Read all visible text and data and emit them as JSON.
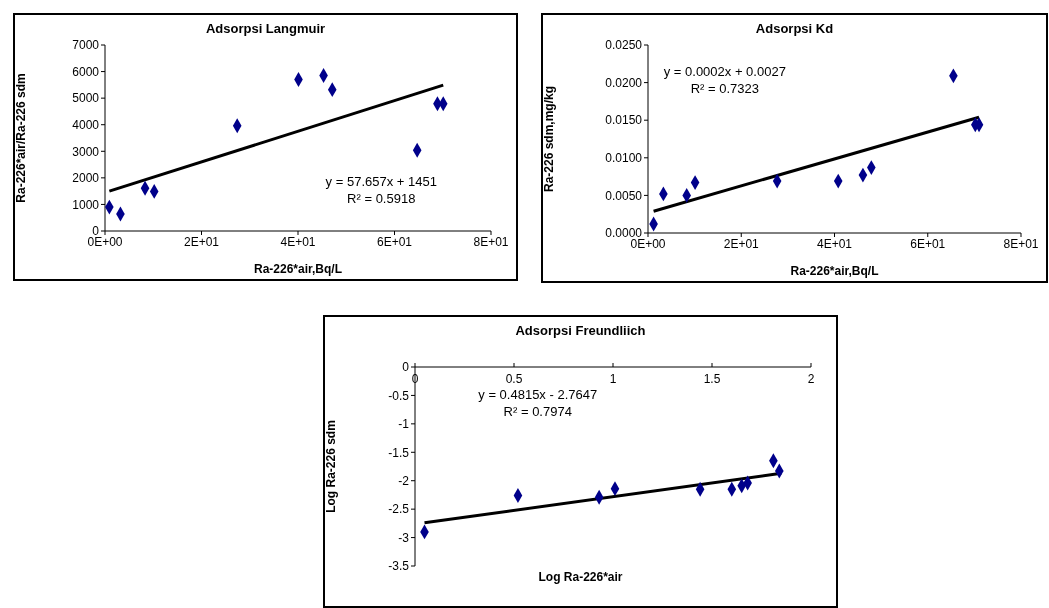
{
  "chart_data": [
    {
      "type": "scatter",
      "title": "Adsorpsi Langmuir",
      "xlabel": "Ra-226*air,Bq/L",
      "ylabel": "Ra-226*air/Ra-226 sdm",
      "marker": "diamond",
      "grid": false,
      "xlim": [
        0,
        80
      ],
      "xticks": [
        {
          "value": 0,
          "label": "0E+00"
        },
        {
          "value": 20,
          "label": "2E+01"
        },
        {
          "value": 40,
          "label": "4E+01"
        },
        {
          "value": 60,
          "label": "6E+01"
        },
        {
          "value": 80,
          "label": "8E+01"
        }
      ],
      "ylim": [
        0,
        7000
      ],
      "yticks": [
        0,
        1000,
        2000,
        3000,
        4000,
        5000,
        6000,
        7000
      ],
      "annotations": [
        "y = 57.657x + 1451",
        "R² = 0.5918"
      ],
      "series": [
        {
          "color": "#00008b",
          "x": [
            0.9,
            3.2,
            8.3,
            10.2,
            27.4,
            40.1,
            45.3,
            47.1,
            64.7,
            68.9,
            70.1
          ],
          "values": [
            900,
            640,
            1610,
            1490,
            3960,
            5700,
            5850,
            5320,
            3040,
            4790,
            4790
          ]
        },
        {
          "type": "line",
          "marker": "none",
          "color": "#000000",
          "x": [
            0.9,
            70.1
          ],
          "values": [
            1500,
            5490
          ]
        }
      ]
    },
    {
      "type": "scatter",
      "title": "Adsorpsi Kd",
      "xlabel": "Ra-226*air,Bq/L",
      "ylabel": "Ra-226 sdm,mg/kg",
      "marker": "diamond",
      "grid": false,
      "xlim": [
        0,
        80
      ],
      "xticks": [
        {
          "value": 0,
          "label": "0E+00"
        },
        {
          "value": 20,
          "label": "2E+01"
        },
        {
          "value": 40,
          "label": "4E+01"
        },
        {
          "value": 60,
          "label": "6E+01"
        },
        {
          "value": 80,
          "label": "8E+01"
        }
      ],
      "ylim": [
        0,
        0.025
      ],
      "yticks": [
        {
          "value": 0,
          "label": "0.0000"
        },
        {
          "value": 0.005,
          "label": "0.0050"
        },
        {
          "value": 0.01,
          "label": "0.0100"
        },
        {
          "value": 0.015,
          "label": "0.0150"
        },
        {
          "value": 0.02,
          "label": "0.0200"
        },
        {
          "value": 0.025,
          "label": "0.0250"
        }
      ],
      "annotations": [
        "y = 0.0002x + 0.0027",
        "R² = 0.7323"
      ],
      "series": [
        {
          "color": "#00008b",
          "x": [
            1.2,
            3.3,
            8.3,
            10.1,
            27.7,
            40.8,
            46.1,
            47.9,
            65.5,
            70.2,
            71.0
          ],
          "values": [
            0.0012,
            0.0052,
            0.005,
            0.0067,
            0.0069,
            0.0069,
            0.0077,
            0.0087,
            0.0209,
            0.0144,
            0.0144
          ]
        },
        {
          "type": "line",
          "marker": "none",
          "color": "#000000",
          "x": [
            1.2,
            71.0
          ],
          "values": [
            0.0029,
            0.0154
          ]
        }
      ]
    },
    {
      "type": "scatter",
      "title": "Adsorpsi Freundliich",
      "xlabel": "Log Ra-226*air",
      "ylabel": "Log Ra-226 sdm",
      "marker": "diamond",
      "grid": false,
      "xlim": [
        0,
        2
      ],
      "xticks": [
        0,
        0.5,
        1,
        1.5,
        2
      ],
      "ylim": [
        -3.5,
        0
      ],
      "yticks": [
        -3.5,
        -3,
        -2.5,
        -2,
        -1.5,
        -1,
        -0.5,
        0
      ],
      "annotations": [
        "y = 0.4815x - 2.7647",
        "R² = 0.7974"
      ],
      "series": [
        {
          "color": "#00008b",
          "x": [
            0.048,
            0.52,
            0.93,
            1.01,
            1.44,
            1.6,
            1.65,
            1.68,
            1.81,
            1.84
          ],
          "values": [
            -2.9,
            -2.26,
            -2.29,
            -2.14,
            -2.15,
            -2.15,
            -2.09,
            -2.04,
            -1.65,
            -1.83
          ]
        },
        {
          "type": "line",
          "marker": "none",
          "color": "#000000",
          "x": [
            0.048,
            1.85
          ],
          "values": [
            -2.74,
            -1.87
          ]
        }
      ]
    }
  ]
}
